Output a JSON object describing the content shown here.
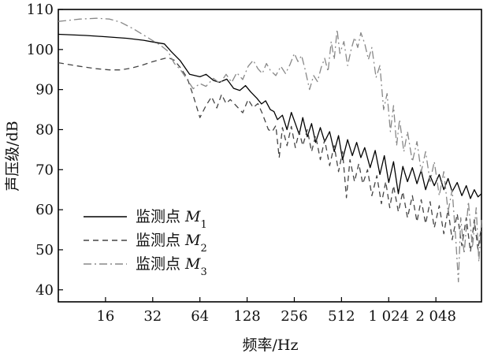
{
  "chart_data": {
    "type": "line",
    "title": "",
    "xlabel": "频率/Hz",
    "ylabel": "声压级/dB",
    "x_scale": "log2",
    "xlim": [
      8,
      4000
    ],
    "ylim": [
      37,
      110
    ],
    "x_ticks": [
      {
        "value": 16,
        "label": "16"
      },
      {
        "value": 32,
        "label": "32"
      },
      {
        "value": 64,
        "label": "64"
      },
      {
        "value": 128,
        "label": "128"
      },
      {
        "value": 256,
        "label": "256"
      },
      {
        "value": 512,
        "label": "512"
      },
      {
        "value": 1024,
        "label": "1 024"
      },
      {
        "value": 2048,
        "label": "2 048"
      }
    ],
    "y_ticks": [
      {
        "value": 40,
        "label": "40"
      },
      {
        "value": 50,
        "label": "50"
      },
      {
        "value": 60,
        "label": "60"
      },
      {
        "value": 70,
        "label": "70"
      },
      {
        "value": 80,
        "label": "80"
      },
      {
        "value": 90,
        "label": "90"
      },
      {
        "value": 100,
        "label": "100"
      },
      {
        "value": 110,
        "label": "110"
      }
    ],
    "grid": false,
    "legend_position": "lower-left",
    "series": [
      {
        "name": "监测点 M1",
        "legend_prefix": "监测点 ",
        "legend_var": "M",
        "legend_sub": "1",
        "style": "solid",
        "color": "#000000",
        "points": [
          [
            8,
            103.8
          ],
          [
            12,
            103.5
          ],
          [
            16,
            103.2
          ],
          [
            22,
            102.8
          ],
          [
            28,
            102.3
          ],
          [
            33,
            101.8
          ],
          [
            38,
            101.4
          ],
          [
            42,
            99.5
          ],
          [
            48,
            97.2
          ],
          [
            55,
            93.8
          ],
          [
            64,
            93.2
          ],
          [
            70,
            93.8
          ],
          [
            78,
            92.3
          ],
          [
            85,
            91.8
          ],
          [
            95,
            92.6
          ],
          [
            105,
            90.3
          ],
          [
            115,
            89.8
          ],
          [
            125,
            91.0
          ],
          [
            135,
            89.4
          ],
          [
            148,
            87.8
          ],
          [
            158,
            86.4
          ],
          [
            168,
            87.2
          ],
          [
            180,
            85.0
          ],
          [
            190,
            84.5
          ],
          [
            200,
            82.5
          ],
          [
            215,
            83.6
          ],
          [
            230,
            80.0
          ],
          [
            245,
            84.3
          ],
          [
            260,
            81.5
          ],
          [
            275,
            78.8
          ],
          [
            290,
            83.0
          ],
          [
            310,
            78.2
          ],
          [
            330,
            81.5
          ],
          [
            350,
            76.8
          ],
          [
            375,
            80.5
          ],
          [
            400,
            77.0
          ],
          [
            430,
            79.5
          ],
          [
            460,
            74.5
          ],
          [
            490,
            78.5
          ],
          [
            520,
            72.5
          ],
          [
            560,
            77.5
          ],
          [
            600,
            73.5
          ],
          [
            640,
            76.8
          ],
          [
            680,
            73.0
          ],
          [
            720,
            75.5
          ],
          [
            780,
            70.5
          ],
          [
            840,
            74.8
          ],
          [
            900,
            68.8
          ],
          [
            960,
            73.5
          ],
          [
            1024,
            66.8
          ],
          [
            1100,
            72.0
          ],
          [
            1180,
            64.0
          ],
          [
            1260,
            70.8
          ],
          [
            1350,
            67.0
          ],
          [
            1450,
            70.5
          ],
          [
            1550,
            66.5
          ],
          [
            1650,
            69.8
          ],
          [
            1760,
            65.0
          ],
          [
            1880,
            68.5
          ],
          [
            2000,
            66.0
          ],
          [
            2150,
            68.8
          ],
          [
            2300,
            65.0
          ],
          [
            2450,
            67.8
          ],
          [
            2600,
            64.5
          ],
          [
            2800,
            66.8
          ],
          [
            3000,
            63.5
          ],
          [
            3200,
            66.0
          ],
          [
            3400,
            62.8
          ],
          [
            3600,
            65.0
          ],
          [
            3800,
            63.2
          ],
          [
            4000,
            64.0
          ]
        ]
      },
      {
        "name": "监测点 M2",
        "legend_prefix": "监测点 ",
        "legend_var": "M",
        "legend_sub": "2",
        "style": "dashed",
        "color": "#444444",
        "points": [
          [
            8,
            96.7
          ],
          [
            11,
            95.8
          ],
          [
            14,
            95.2
          ],
          [
            17,
            94.9
          ],
          [
            20,
            94.9
          ],
          [
            23,
            95.3
          ],
          [
            27,
            96.0
          ],
          [
            31,
            96.8
          ],
          [
            35,
            97.4
          ],
          [
            40,
            98.0
          ],
          [
            44,
            97.3
          ],
          [
            48,
            95.5
          ],
          [
            53,
            93.0
          ],
          [
            58,
            88.5
          ],
          [
            64,
            83.0
          ],
          [
            70,
            86.0
          ],
          [
            76,
            88.2
          ],
          [
            82,
            85.4
          ],
          [
            88,
            88.8
          ],
          [
            94,
            86.5
          ],
          [
            100,
            87.5
          ],
          [
            110,
            85.8
          ],
          [
            120,
            84.2
          ],
          [
            130,
            87.5
          ],
          [
            140,
            85.5
          ],
          [
            150,
            86.5
          ],
          [
            160,
            84.0
          ],
          [
            175,
            80.0
          ],
          [
            185,
            79.5
          ],
          [
            195,
            81.0
          ],
          [
            205,
            73.0
          ],
          [
            215,
            80.5
          ],
          [
            230,
            76.0
          ],
          [
            245,
            80.8
          ],
          [
            260,
            75.5
          ],
          [
            275,
            79.5
          ],
          [
            290,
            76.0
          ],
          [
            310,
            80.0
          ],
          [
            330,
            74.5
          ],
          [
            350,
            78.5
          ],
          [
            375,
            72.5
          ],
          [
            400,
            77.5
          ],
          [
            430,
            71.0
          ],
          [
            460,
            76.0
          ],
          [
            490,
            69.5
          ],
          [
            520,
            74.5
          ],
          [
            550,
            63.0
          ],
          [
            580,
            72.5
          ],
          [
            620,
            67.0
          ],
          [
            660,
            71.5
          ],
          [
            700,
            66.5
          ],
          [
            750,
            70.0
          ],
          [
            800,
            63.5
          ],
          [
            860,
            68.5
          ],
          [
            920,
            61.5
          ],
          [
            980,
            67.0
          ],
          [
            1040,
            60.5
          ],
          [
            1100,
            66.0
          ],
          [
            1180,
            59.5
          ],
          [
            1260,
            64.5
          ],
          [
            1350,
            58.0
          ],
          [
            1450,
            63.5
          ],
          [
            1550,
            57.0
          ],
          [
            1650,
            62.5
          ],
          [
            1760,
            56.5
          ],
          [
            1880,
            62.0
          ],
          [
            2000,
            55.5
          ],
          [
            2150,
            61.0
          ],
          [
            2300,
            54.0
          ],
          [
            2450,
            60.0
          ],
          [
            2600,
            52.5
          ],
          [
            2800,
            59.0
          ],
          [
            3000,
            51.0
          ],
          [
            3200,
            58.0
          ],
          [
            3400,
            49.5
          ],
          [
            3600,
            57.5
          ],
          [
            3800,
            50.0
          ],
          [
            4000,
            56.0
          ]
        ]
      },
      {
        "name": "监测点 M3",
        "legend_prefix": "监测点 ",
        "legend_var": "M",
        "legend_sub": "3",
        "style": "dashdot",
        "color": "#888888",
        "points": [
          [
            8,
            107.0
          ],
          [
            11,
            107.6
          ],
          [
            14,
            107.8
          ],
          [
            17,
            107.6
          ],
          [
            20,
            106.8
          ],
          [
            24,
            105.2
          ],
          [
            28,
            103.6
          ],
          [
            32,
            102.2
          ],
          [
            36,
            101.0
          ],
          [
            40,
            99.6
          ],
          [
            44,
            96.5
          ],
          [
            48,
            95.0
          ],
          [
            53,
            92.5
          ],
          [
            58,
            90.2
          ],
          [
            64,
            91.5
          ],
          [
            70,
            90.8
          ],
          [
            78,
            92.8
          ],
          [
            86,
            91.5
          ],
          [
            94,
            93.8
          ],
          [
            102,
            91.8
          ],
          [
            110,
            94.2
          ],
          [
            120,
            92.5
          ],
          [
            130,
            95.8
          ],
          [
            140,
            97.3
          ],
          [
            150,
            95.2
          ],
          [
            160,
            94.0
          ],
          [
            170,
            96.5
          ],
          [
            180,
            94.8
          ],
          [
            195,
            93.5
          ],
          [
            210,
            95.8
          ],
          [
            225,
            94.0
          ],
          [
            240,
            96.2
          ],
          [
            256,
            99.0
          ],
          [
            270,
            97.0
          ],
          [
            285,
            98.5
          ],
          [
            300,
            95.0
          ],
          [
            320,
            90.0
          ],
          [
            340,
            93.5
          ],
          [
            360,
            92.0
          ],
          [
            380,
            95.5
          ],
          [
            400,
            97.8
          ],
          [
            420,
            94.5
          ],
          [
            440,
            102.0
          ],
          [
            460,
            97.5
          ],
          [
            480,
            105.0
          ],
          [
            500,
            99.0
          ],
          [
            530,
            102.0
          ],
          [
            560,
            96.0
          ],
          [
            590,
            100.0
          ],
          [
            620,
            103.0
          ],
          [
            650,
            100.5
          ],
          [
            680,
            104.2
          ],
          [
            720,
            101.5
          ],
          [
            760,
            97.5
          ],
          [
            800,
            100.5
          ],
          [
            850,
            93.0
          ],
          [
            900,
            96.0
          ],
          [
            950,
            85.0
          ],
          [
            1000,
            89.0
          ],
          [
            1050,
            79.5
          ],
          [
            1100,
            86.0
          ],
          [
            1150,
            76.0
          ],
          [
            1200,
            82.5
          ],
          [
            1280,
            74.5
          ],
          [
            1350,
            79.5
          ],
          [
            1450,
            72.0
          ],
          [
            1550,
            77.0
          ],
          [
            1650,
            69.5
          ],
          [
            1760,
            74.5
          ],
          [
            1880,
            67.0
          ],
          [
            2000,
            72.0
          ],
          [
            2150,
            63.5
          ],
          [
            2300,
            69.5
          ],
          [
            2450,
            59.5
          ],
          [
            2600,
            65.0
          ],
          [
            2750,
            52.0
          ],
          [
            2850,
            42.0
          ],
          [
            2950,
            58.0
          ],
          [
            3100,
            49.0
          ],
          [
            3300,
            62.0
          ],
          [
            3500,
            50.5
          ],
          [
            3700,
            60.5
          ],
          [
            3850,
            47.0
          ],
          [
            4000,
            57.5
          ]
        ]
      }
    ]
  }
}
